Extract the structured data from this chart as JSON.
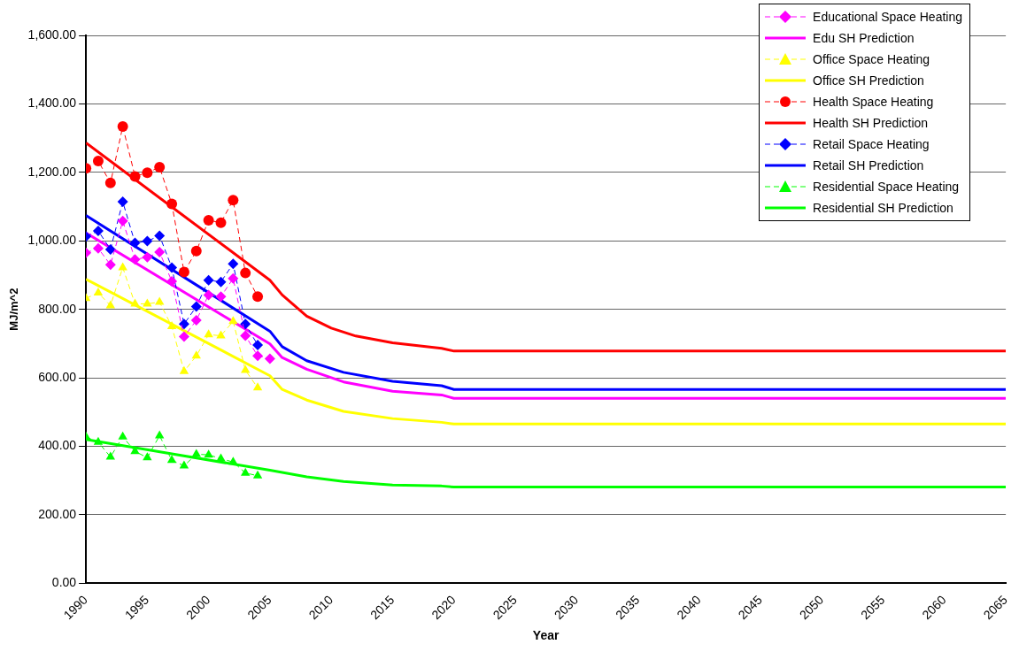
{
  "chart_data": {
    "type": "line",
    "xlabel": "Year",
    "ylabel": "MJ/m^2",
    "xlim": [
      1990,
      2065
    ],
    "xticks": [
      1990,
      1995,
      2000,
      2005,
      2010,
      2015,
      2020,
      2025,
      2030,
      2035,
      2040,
      2045,
      2050,
      2055,
      2060,
      2065
    ],
    "ylim": [
      0,
      1600
    ],
    "yticks": [
      {
        "value": 0,
        "label": "0.00"
      },
      {
        "value": 200,
        "label": "200.00"
      },
      {
        "value": 400,
        "label": "400.00"
      },
      {
        "value": 600,
        "label": "600.00"
      },
      {
        "value": 800,
        "label": "800.00"
      },
      {
        "value": 1000,
        "label": "1,000.00"
      },
      {
        "value": 1200,
        "label": "1,200.00"
      },
      {
        "value": 1400,
        "label": "1,400.00"
      },
      {
        "value": 1600,
        "label": "1,600.00"
      }
    ],
    "grid": "y",
    "legend": "top right",
    "series": [
      {
        "name": "Educational Space Heating",
        "color": "#ff00ff",
        "marker": "diamond",
        "line_style": "dashed",
        "x": [
          1990,
          1991,
          1992,
          1993,
          1994,
          1995,
          1996,
          1997,
          1998,
          1999,
          2000,
          2001,
          2002,
          2003,
          2004,
          2005
        ],
        "values": [
          965,
          978,
          930,
          1058,
          946,
          952,
          967,
          882,
          720,
          768,
          842,
          837,
          890,
          723,
          664,
          656
        ]
      },
      {
        "name": "Edu SH Prediction",
        "color": "#ff00ff",
        "marker": "none",
        "line_style": "solid",
        "x": [
          1990,
          2005,
          2006,
          2008,
          2011,
          2015,
          2019,
          2020,
          2065
        ],
        "values": [
          1023,
          699,
          659,
          625,
          588,
          561,
          550,
          540,
          540
        ]
      },
      {
        "name": "Office Space Heating",
        "color": "#ffff00",
        "marker": "triangle",
        "line_style": "dashed",
        "x": [
          1990,
          1991,
          1992,
          1993,
          1994,
          1995,
          1996,
          1997,
          1998,
          1999,
          2000,
          2001,
          2002,
          2003,
          2004
        ],
        "values": [
          832,
          848,
          811,
          922,
          816,
          816,
          821,
          750,
          619,
          664,
          726,
          723,
          765,
          622,
          571
        ]
      },
      {
        "name": "Office SH Prediction",
        "color": "#ffff00",
        "marker": "none",
        "line_style": "solid",
        "x": [
          1990,
          2005,
          2006,
          2008,
          2011,
          2015,
          2019,
          2020,
          2065
        ],
        "values": [
          888,
          606,
          566,
          535,
          502,
          481,
          470,
          465,
          465
        ]
      },
      {
        "name": "Health Space Heating",
        "color": "#ff0000",
        "marker": "circle",
        "line_style": "dashed",
        "x": [
          1990,
          1991,
          1992,
          1993,
          1994,
          1995,
          1996,
          1997,
          1998,
          1999,
          2000,
          2001,
          2002,
          2003,
          2004
        ],
        "values": [
          1212,
          1233,
          1169,
          1334,
          1188,
          1199,
          1215,
          1108,
          909,
          970,
          1060,
          1053,
          1119,
          906,
          837
        ]
      },
      {
        "name": "Health SH Prediction",
        "color": "#ff0000",
        "marker": "none",
        "line_style": "solid",
        "x": [
          1990,
          2005,
          2006,
          2008,
          2010,
          2012,
          2015,
          2019,
          2020,
          2065
        ],
        "values": [
          1286,
          885,
          842,
          780,
          745,
          722,
          702,
          686,
          678,
          678
        ]
      },
      {
        "name": "Retail Space Heating",
        "color": "#0000ff",
        "marker": "diamond",
        "line_style": "dashed",
        "x": [
          1990,
          1991,
          1992,
          1993,
          1994,
          1995,
          1996,
          1997,
          1998,
          1999,
          2000,
          2001,
          2002,
          2003,
          2004
        ],
        "values": [
          1013,
          1029,
          975,
          1114,
          994,
          999,
          1015,
          922,
          757,
          808,
          885,
          880,
          933,
          757,
          696
        ]
      },
      {
        "name": "Retail SH Prediction",
        "color": "#0000ff",
        "marker": "none",
        "line_style": "solid",
        "x": [
          1990,
          2005,
          2006,
          2008,
          2011,
          2015,
          2019,
          2020,
          2065
        ],
        "values": [
          1074,
          736,
          691,
          650,
          616,
          590,
          577,
          566,
          566
        ]
      },
      {
        "name": "Residential Space Heating",
        "color": "#00ff00",
        "marker": "triangle",
        "line_style": "dashed",
        "x": [
          1990,
          1991,
          1992,
          1993,
          1994,
          1995,
          1996,
          1997,
          1998,
          1999,
          2000,
          2001,
          2002,
          2003,
          2004
        ],
        "values": [
          428,
          412,
          369,
          428,
          385,
          367,
          431,
          359,
          343,
          377,
          375,
          364,
          354,
          322,
          314
        ]
      },
      {
        "name": "Residential SH Prediction",
        "color": "#00ff00",
        "marker": "none",
        "line_style": "solid",
        "x": [
          1990,
          2005,
          2008,
          2011,
          2015,
          2019,
          2020,
          2065
        ],
        "values": [
          420,
          330,
          311,
          297,
          287,
          284,
          281,
          281
        ]
      }
    ]
  }
}
